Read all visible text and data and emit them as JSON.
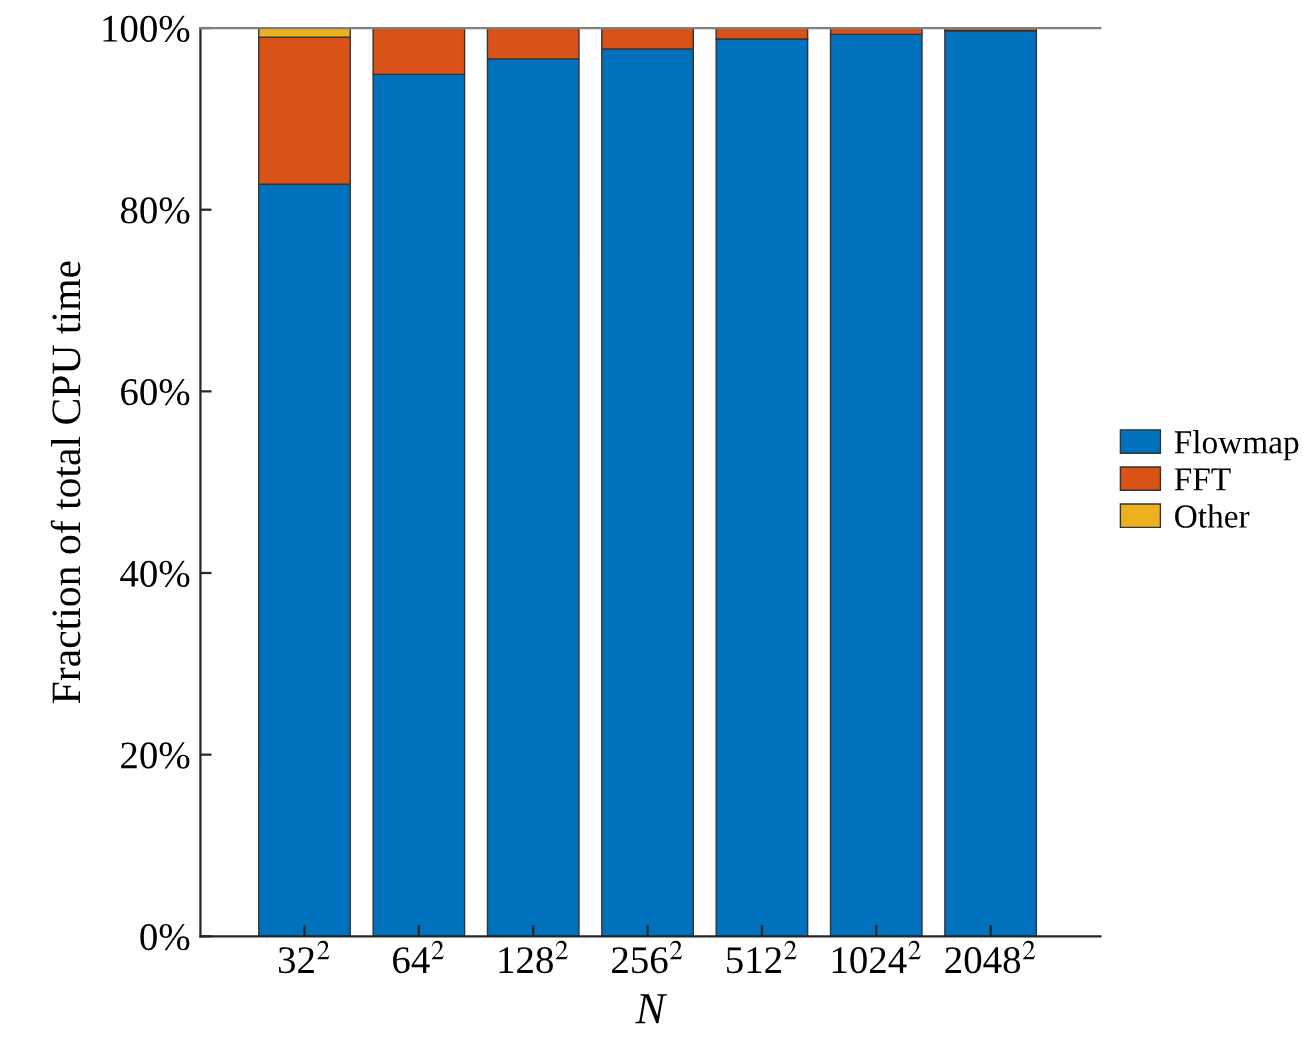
{
  "chart_data": {
    "type": "bar",
    "stacked": true,
    "xlabel": "N",
    "ylabel": "Fraction of total CPU time",
    "categories": [
      "32$^{2}$",
      "64$^{2}$",
      "128$^{2}$",
      "256$^{2}$",
      "512$^{2}$",
      "1024$^{2}$",
      "2048$^{2}$"
    ],
    "series": [
      {
        "name": "Flowmap",
        "color": "#0072bd",
        "values": [
          82.8,
          94.9,
          96.6,
          97.7,
          98.8,
          99.3,
          99.7
        ]
      },
      {
        "name": "FFT",
        "color": "#d95319",
        "values": [
          16.2,
          5.1,
          3.4,
          2.3,
          1.2,
          0.7,
          0.3
        ]
      },
      {
        "name": "Other",
        "color": "#edb120",
        "values": [
          1.0,
          null,
          null,
          null,
          null,
          null,
          null
        ]
      }
    ],
    "ylim": [
      0,
      100
    ],
    "yticks": [
      {
        "value": 0,
        "label": "0%"
      },
      {
        "value": 20,
        "label": "20%"
      },
      {
        "value": 40,
        "label": "40%"
      },
      {
        "value": 60,
        "label": "60%"
      },
      {
        "value": 80,
        "label": "80%"
      },
      {
        "value": 100,
        "label": "100%"
      }
    ],
    "legend": "right",
    "grid": false
  }
}
